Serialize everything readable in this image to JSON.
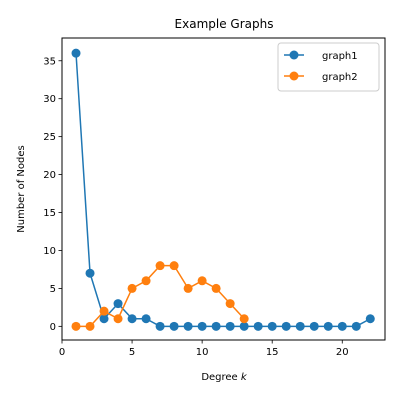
{
  "chart_data": {
    "type": "line",
    "title": "Example Graphs",
    "xlabel_prefix": "Degree ",
    "xlabel_var": "k",
    "ylabel": "Number of Nodes",
    "xlim": [
      0,
      23.05
    ],
    "ylim": [
      -1.8,
      38
    ],
    "xticks": [
      0,
      5,
      10,
      15,
      20
    ],
    "yticks": [
      0,
      5,
      10,
      15,
      20,
      25,
      30,
      35
    ],
    "legend_position": "top-right",
    "grid": false,
    "series": [
      {
        "name": "graph1",
        "color": "#1f77b4",
        "x": [
          1,
          2,
          3,
          4,
          5,
          6,
          7,
          8,
          9,
          10,
          11,
          12,
          13,
          14,
          15,
          16,
          17,
          18,
          19,
          20,
          21,
          22
        ],
        "y": [
          36,
          7,
          1,
          3,
          1,
          1,
          0,
          0,
          0,
          0,
          0,
          0,
          0,
          0,
          0,
          0,
          0,
          0,
          0,
          0,
          0,
          1
        ]
      },
      {
        "name": "graph2",
        "color": "#ff7f0e",
        "x": [
          1,
          2,
          3,
          4,
          5,
          6,
          7,
          8,
          9,
          10,
          11,
          12,
          13
        ],
        "y": [
          0,
          0,
          2,
          1,
          5,
          6,
          8,
          8,
          5,
          6,
          5,
          3,
          1
        ]
      }
    ]
  }
}
